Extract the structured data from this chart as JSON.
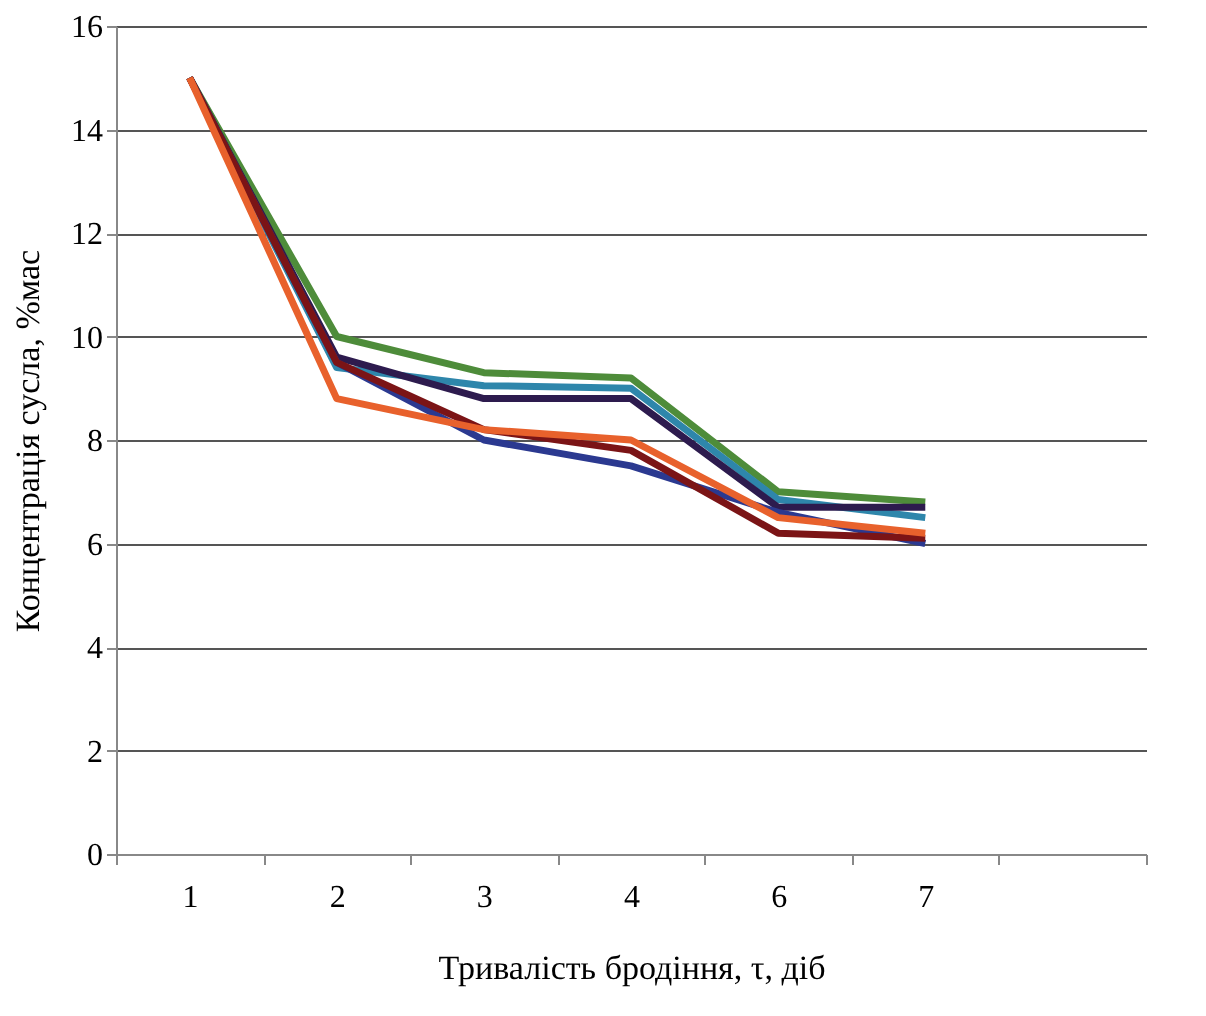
{
  "chart_data": {
    "type": "line",
    "xlabel": "Тривалість бродіння, τ, діб",
    "ylabel": "Концентрація сусла, %мас",
    "categories": [
      "1",
      "2",
      "3",
      "4",
      "6",
      "7",
      null
    ],
    "series": [
      {
        "color": "#4e8c3a",
        "values": [
          15,
          10.0,
          9.3,
          9.2,
          7.0,
          6.8,
          null
        ]
      },
      {
        "color": "#2e86ab",
        "values": [
          15,
          9.4,
          9.05,
          9.0,
          6.85,
          6.5,
          null
        ]
      },
      {
        "color": "#2d1b4e",
        "values": [
          15,
          9.6,
          8.8,
          8.8,
          6.7,
          6.7,
          null
        ]
      },
      {
        "color": "#2b3990",
        "values": [
          15,
          9.5,
          8.0,
          7.5,
          6.6,
          6.0,
          null
        ]
      },
      {
        "color": "#7b1416",
        "values": [
          15,
          9.5,
          8.2,
          7.8,
          6.2,
          6.1,
          null
        ]
      },
      {
        "color": "#e8612c",
        "values": [
          15,
          8.8,
          8.2,
          8.0,
          6.5,
          6.2,
          null
        ]
      }
    ],
    "ylim": [
      0,
      16
    ],
    "yticks": [
      0,
      2,
      4,
      6,
      8,
      10,
      12,
      14,
      16
    ],
    "grid": "y",
    "legend": false,
    "marker": "none",
    "line_style": "solid"
  }
}
